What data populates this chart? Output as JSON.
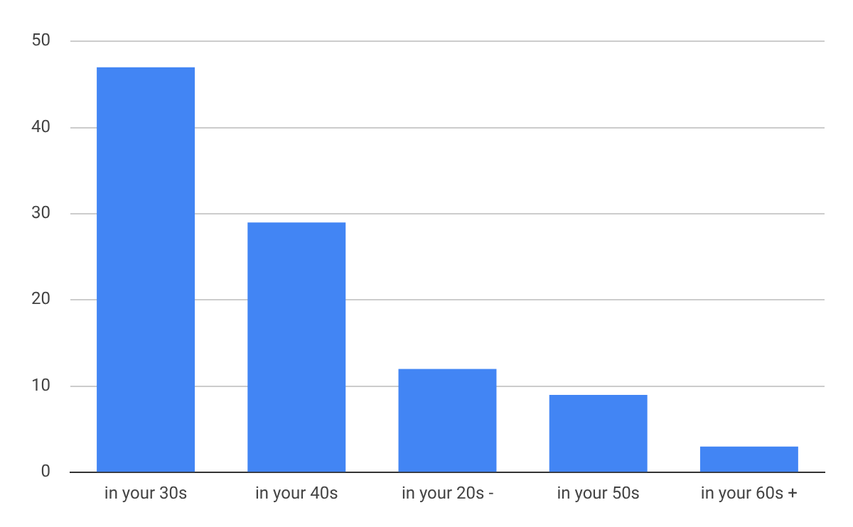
{
  "chart_data": {
    "type": "bar",
    "categories": [
      "in your 30s",
      "in your 40s",
      "in your 20s -",
      "in your 50s",
      "in your 60s +"
    ],
    "values": [
      47,
      29,
      12,
      9,
      3
    ],
    "color": "#4285f4",
    "ylim": [
      0,
      50
    ],
    "yticks": [
      0,
      10,
      20,
      30,
      40,
      50
    ],
    "grid": "y",
    "legend": false
  }
}
